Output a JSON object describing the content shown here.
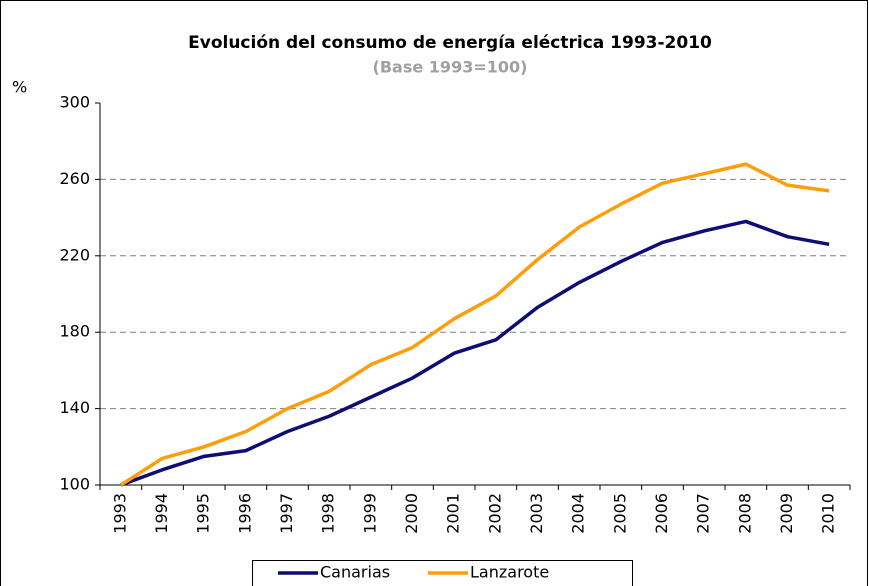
{
  "chart_data": {
    "type": "line",
    "title": "Evolución del consumo de energía eléctrica 1993-2010",
    "subtitle": "(Base 1993=100)",
    "y_label": "%",
    "categories": [
      "1993",
      "1994",
      "1995",
      "1996",
      "1997",
      "1998",
      "1999",
      "2000",
      "2001",
      "2002",
      "2003",
      "2004",
      "2005",
      "2006",
      "2007",
      "2008",
      "2009",
      "2010"
    ],
    "series": [
      {
        "name": "Canarias",
        "color": "#0d0d73",
        "values": [
          100,
          108,
          115,
          118,
          128,
          136,
          146,
          156,
          169,
          176,
          193,
          206,
          217,
          227,
          233,
          238,
          230,
          226
        ]
      },
      {
        "name": "Lanzarote",
        "color": "#ff9e0a",
        "values": [
          100,
          114,
          120,
          128,
          140,
          149,
          163,
          172,
          187,
          199,
          218,
          235,
          247,
          258,
          263,
          268,
          257,
          254
        ]
      }
    ],
    "ylim": [
      100,
      300
    ],
    "yticks": [
      100,
      140,
      180,
      220,
      260,
      300
    ],
    "grid": true,
    "legend": "bottom"
  }
}
